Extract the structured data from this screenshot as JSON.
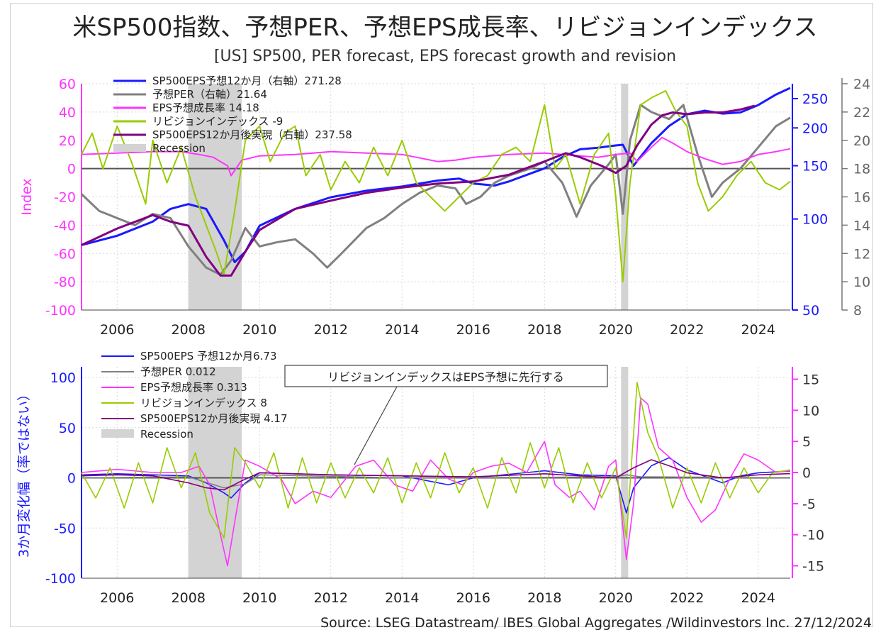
{
  "header": {
    "title": "米SP500指数、予想PER、予想EPS成長率、リビジョンインデックス",
    "subtitle": "[US] SP500, PER forecast, EPS forecast growth and revision"
  },
  "footer": {
    "source": "Source: LSEG Datastream/ IBES Global Aggregates /Wildinvestors Inc. 27/12/2024"
  },
  "colors": {
    "eps_forecast": "#1a1aff",
    "per": "#808080",
    "eps_growth": "#ff33ff",
    "revision": "#99cc00",
    "eps_actual": "#800080",
    "recession": "#d3d3d3"
  },
  "chart_data": [
    {
      "type": "line",
      "x_ticks": [
        "2006",
        "2008",
        "2010",
        "2012",
        "2014",
        "2016",
        "2018",
        "2020",
        "2022",
        "2024"
      ],
      "xlim": [
        2005,
        2024.9
      ],
      "y_left": {
        "label": "Index",
        "ylim": [
          -100,
          60
        ],
        "ticks": [
          "60",
          "40",
          "20",
          "0",
          "-20",
          "-40",
          "-60",
          "-80",
          "-100"
        ]
      },
      "y_right_inner": {
        "scale": "log",
        "ylim": [
          50,
          280
        ],
        "ticks": [
          "250",
          "200",
          "150",
          "100",
          "50"
        ]
      },
      "y_right_outer": {
        "ylim": [
          8,
          24
        ],
        "ticks": [
          "24",
          "22",
          "20",
          "18",
          "16",
          "14",
          "12",
          "10",
          "8"
        ]
      },
      "legend": [
        "SP500EPS予想12か月（右軸）271.28",
        "予想PER（右軸）21.64",
        "EPS予想成長率 14.18",
        "リビジョンインデックス -9",
        "SP500EPS12か月後実現（右軸）237.58",
        "Recession"
      ],
      "recessions": [
        [
          2008.0,
          2009.5
        ],
        [
          2020.15,
          2020.35
        ]
      ],
      "series": [
        {
          "name": "SP500EPS予想12か月（右軸）",
          "axis": "right_inner",
          "x": [
            2005.0,
            2006.0,
            2007.0,
            2007.5,
            2008.0,
            2008.5,
            2009.0,
            2009.3,
            2009.6,
            2010.0,
            2011.0,
            2012.0,
            2013.0,
            2014.0,
            2015.0,
            2015.6,
            2016.0,
            2016.6,
            2017.0,
            2018.0,
            2018.5,
            2019.0,
            2019.5,
            2020.0,
            2020.2,
            2020.5,
            2021.0,
            2021.5,
            2022.0,
            2022.5,
            2023.0,
            2023.5,
            2024.0,
            2024.5,
            2024.9
          ],
          "values": [
            82,
            88,
            98,
            108,
            112,
            108,
            85,
            72,
            78,
            95,
            108,
            118,
            124,
            128,
            134,
            136,
            131,
            129,
            133,
            147,
            160,
            170,
            172,
            175,
            176,
            150,
            178,
            203,
            222,
            228,
            223,
            225,
            238,
            258,
            271
          ]
        },
        {
          "name": "予想PER（右軸）",
          "axis": "right_outer",
          "x": [
            2005.0,
            2005.5,
            2006.0,
            2006.5,
            2007.0,
            2007.5,
            2008.0,
            2008.5,
            2008.9,
            2009.2,
            2009.6,
            2010.0,
            2010.5,
            2011.0,
            2011.5,
            2011.9,
            2012.3,
            2013.0,
            2013.5,
            2014.0,
            2014.5,
            2015.0,
            2015.5,
            2015.8,
            2016.2,
            2016.6,
            2017.0,
            2017.6,
            2018.0,
            2018.5,
            2018.9,
            2019.3,
            2019.8,
            2020.0,
            2020.2,
            2020.4,
            2020.7,
            2021.0,
            2021.5,
            2021.9,
            2022.3,
            2022.7,
            2023.0,
            2023.5,
            2024.0,
            2024.5,
            2024.9
          ],
          "values": [
            16.2,
            15.0,
            14.5,
            14.0,
            14.8,
            14.5,
            12.5,
            11.0,
            10.5,
            11.5,
            13.8,
            12.5,
            12.8,
            13.0,
            12.0,
            11.0,
            12.0,
            13.8,
            14.5,
            15.5,
            16.3,
            16.8,
            16.6,
            15.5,
            16.0,
            17.0,
            17.5,
            18.0,
            18.5,
            17.0,
            14.6,
            16.8,
            18.3,
            19.0,
            14.8,
            20.0,
            22.5,
            22.0,
            21.5,
            22.5,
            19.0,
            16.0,
            17.0,
            18.0,
            19.5,
            21.0,
            21.6
          ]
        },
        {
          "name": "EPS予想成長率",
          "x": [
            2005.0,
            2006.0,
            2007.0,
            2007.8,
            2008.3,
            2008.7,
            2009.1,
            2009.2,
            2009.5,
            2010.0,
            2011.0,
            2012.0,
            2013.0,
            2014.0,
            2015.0,
            2015.5,
            2016.0,
            2017.0,
            2018.0,
            2019.0,
            2019.5,
            2020.0,
            2020.4,
            2020.6,
            2021.0,
            2021.3,
            2021.6,
            2022.0,
            2022.5,
            2023.0,
            2023.5,
            2024.0,
            2024.5,
            2024.9
          ],
          "values": [
            10,
            11,
            12,
            12,
            10,
            8,
            2,
            -5,
            6,
            9,
            10,
            12,
            11,
            10,
            5,
            6,
            8,
            10,
            11,
            9,
            8,
            10,
            11,
            5,
            15,
            22,
            18,
            12,
            7,
            3,
            5,
            10,
            12,
            14
          ]
        },
        {
          "name": "リビジョンインデックス",
          "x": [
            2005.0,
            2005.3,
            2005.6,
            2006.0,
            2006.4,
            2006.8,
            2007.0,
            2007.4,
            2007.8,
            2008.2,
            2008.5,
            2008.8,
            2009.0,
            2009.3,
            2009.6,
            2010.0,
            2010.3,
            2010.7,
            2011.0,
            2011.3,
            2011.7,
            2012.0,
            2012.4,
            2012.8,
            2013.2,
            2013.6,
            2014.0,
            2014.4,
            2014.8,
            2015.2,
            2015.6,
            2016.0,
            2016.4,
            2016.8,
            2017.2,
            2017.6,
            2018.0,
            2018.3,
            2018.6,
            2019.0,
            2019.4,
            2019.8,
            2020.0,
            2020.2,
            2020.4,
            2020.7,
            2021.0,
            2021.4,
            2021.7,
            2022.0,
            2022.3,
            2022.6,
            2023.0,
            2023.4,
            2023.8,
            2024.2,
            2024.6,
            2024.9
          ],
          "values": [
            10,
            25,
            0,
            30,
            5,
            -25,
            20,
            -10,
            15,
            -20,
            -40,
            -60,
            -75,
            -30,
            20,
            30,
            5,
            25,
            30,
            -5,
            10,
            -15,
            5,
            -10,
            15,
            -5,
            20,
            -10,
            -20,
            -30,
            -20,
            -10,
            -5,
            10,
            15,
            5,
            45,
            0,
            10,
            -25,
            10,
            25,
            -20,
            -80,
            -10,
            45,
            50,
            55,
            40,
            30,
            -10,
            -30,
            -20,
            -5,
            5,
            -10,
            -15,
            -9
          ]
        },
        {
          "name": "SP500EPS12か月後実現（右軸）",
          "axis": "right_inner",
          "x": [
            2005.0,
            2006.0,
            2007.0,
            2007.5,
            2008.0,
            2008.5,
            2008.9,
            2009.2,
            2009.6,
            2010.0,
            2011.0,
            2012.0,
            2013.0,
            2014.0,
            2015.0,
            2016.0,
            2017.0,
            2018.0,
            2018.6,
            2019.0,
            2019.6,
            2020.0,
            2020.3,
            2020.6,
            2021.0,
            2021.3,
            2021.6,
            2022.0,
            2022.5,
            2023.0,
            2023.5,
            2023.9
          ],
          "values": [
            82,
            93,
            103,
            98,
            95,
            75,
            65,
            65,
            78,
            92,
            108,
            115,
            122,
            127,
            131,
            133,
            140,
            155,
            165,
            160,
            150,
            142,
            150,
            175,
            205,
            220,
            225,
            222,
            225,
            225,
            230,
            237
          ]
        }
      ]
    },
    {
      "type": "line",
      "ylabel": "3か月変化幅（率ではない）",
      "x_ticks": [
        "2006",
        "2008",
        "2010",
        "2012",
        "2014",
        "2016",
        "2018",
        "2020",
        "2022",
        "2024"
      ],
      "xlim": [
        2005,
        2024.9
      ],
      "y_left": {
        "ylim": [
          -100,
          100
        ],
        "ticks": [
          "100",
          "50",
          "0",
          "-50",
          "-100"
        ]
      },
      "y_right": {
        "ylim": [
          -17,
          17
        ],
        "ticks": [
          "15",
          "10",
          "5",
          "0",
          "-5",
          "-10",
          "-15"
        ]
      },
      "legend": [
        "SP500EPS 予想12か月6.73",
        "予想PER 0.012",
        "EPS予想成長率 0.313",
        "リビジョンインデックス 8",
        "SP500EPS12か月後実現 4.17",
        "Recession"
      ],
      "annotation": "リビジョンインデックスはEPS予想に先行する",
      "recessions": [
        [
          2008.0,
          2009.5
        ],
        [
          2020.15,
          2020.35
        ]
      ],
      "series": [
        {
          "name": "SP500EPS 予想12か月",
          "x": [
            2005.0,
            2006.0,
            2007.0,
            2008.0,
            2008.5,
            2009.0,
            2009.2,
            2009.6,
            2010.0,
            2012.0,
            2014.0,
            2015.3,
            2016.0,
            2018.0,
            2019.0,
            2020.0,
            2020.3,
            2020.5,
            2021.0,
            2021.5,
            2022.0,
            2023.0,
            2023.5,
            2024.0,
            2024.9
          ],
          "values": [
            3,
            4,
            3,
            2,
            -5,
            -15,
            -20,
            -5,
            5,
            3,
            2,
            -7,
            0,
            7,
            3,
            2,
            -35,
            -10,
            12,
            20,
            8,
            -5,
            2,
            5,
            6.73
          ]
        },
        {
          "name": "予想PER",
          "x": [
            2005.0,
            2008.0,
            2009.0,
            2009.6,
            2010.0,
            2014.0,
            2018.0,
            2020.0,
            2020.3,
            2020.7,
            2024.9
          ],
          "values": [
            0,
            1,
            -10,
            -6,
            3,
            0,
            0.5,
            1,
            3,
            1,
            0.012
          ]
        },
        {
          "name": "EPS予想成長率",
          "axis": "right",
          "x": [
            2005.0,
            2006.0,
            2007.0,
            2007.8,
            2008.3,
            2008.6,
            2008.9,
            2009.1,
            2009.3,
            2009.6,
            2010.0,
            2010.6,
            2011.0,
            2011.5,
            2012.0,
            2012.7,
            2013.2,
            2013.8,
            2014.3,
            2014.8,
            2015.3,
            2015.7,
            2016.0,
            2016.5,
            2017.0,
            2017.5,
            2018.0,
            2018.3,
            2018.7,
            2019.0,
            2019.4,
            2019.8,
            2020.0,
            2020.3,
            2020.5,
            2020.7,
            2020.9,
            2021.2,
            2021.6,
            2022.0,
            2022.4,
            2022.8,
            2023.2,
            2023.6,
            2024.0,
            2024.5,
            2024.9
          ],
          "values": [
            0,
            0.5,
            0,
            0,
            1,
            -2,
            -10,
            -15,
            -8,
            2,
            1,
            -1,
            -5,
            -3,
            -4,
            1,
            2,
            -2,
            -3,
            2,
            -1,
            -2,
            0,
            1,
            1.5,
            0,
            5,
            -2,
            -4,
            -3,
            -6,
            1,
            2,
            -14,
            -5,
            12,
            11,
            4,
            2,
            -4,
            -8,
            -6,
            -1,
            3,
            2,
            0,
            0.313
          ]
        },
        {
          "name": "リビジョンインデックス",
          "x": [
            2005.0,
            2005.4,
            2005.8,
            2006.2,
            2006.6,
            2007.0,
            2007.4,
            2007.8,
            2008.2,
            2008.6,
            2009.0,
            2009.3,
            2009.6,
            2010.0,
            2010.4,
            2010.8,
            2011.2,
            2011.6,
            2012.0,
            2012.4,
            2012.8,
            2013.2,
            2013.6,
            2014.0,
            2014.4,
            2014.8,
            2015.2,
            2015.6,
            2016.0,
            2016.4,
            2016.8,
            2017.2,
            2017.6,
            2018.0,
            2018.4,
            2018.8,
            2019.2,
            2019.6,
            2020.0,
            2020.3,
            2020.6,
            2020.9,
            2021.2,
            2021.6,
            2022.0,
            2022.4,
            2022.8,
            2023.2,
            2023.6,
            2024.0,
            2024.4,
            2024.9
          ],
          "values": [
            5,
            -20,
            10,
            -30,
            15,
            -25,
            30,
            -10,
            25,
            -35,
            -60,
            30,
            15,
            -10,
            25,
            -30,
            20,
            -25,
            15,
            -20,
            10,
            -15,
            20,
            -25,
            15,
            -20,
            25,
            -15,
            10,
            -30,
            20,
            -15,
            35,
            -10,
            30,
            -25,
            15,
            -20,
            10,
            -60,
            95,
            45,
            20,
            -30,
            10,
            -25,
            15,
            -20,
            10,
            -15,
            5,
            8
          ]
        },
        {
          "name": "SP500EPS12か月後実現",
          "x": [
            2005.0,
            2006.0,
            2007.0,
            2008.0,
            2008.5,
            2009.0,
            2009.5,
            2010.0,
            2012.0,
            2014.0,
            2016.0,
            2018.0,
            2019.0,
            2020.0,
            2020.5,
            2021.0,
            2021.5,
            2022.0,
            2023.0,
            2024.0,
            2024.9
          ],
          "values": [
            2,
            3,
            2,
            -5,
            -10,
            -12,
            -3,
            5,
            3,
            2,
            1,
            4,
            2,
            0,
            10,
            18,
            12,
            5,
            0,
            3,
            4.17
          ]
        }
      ]
    }
  ]
}
